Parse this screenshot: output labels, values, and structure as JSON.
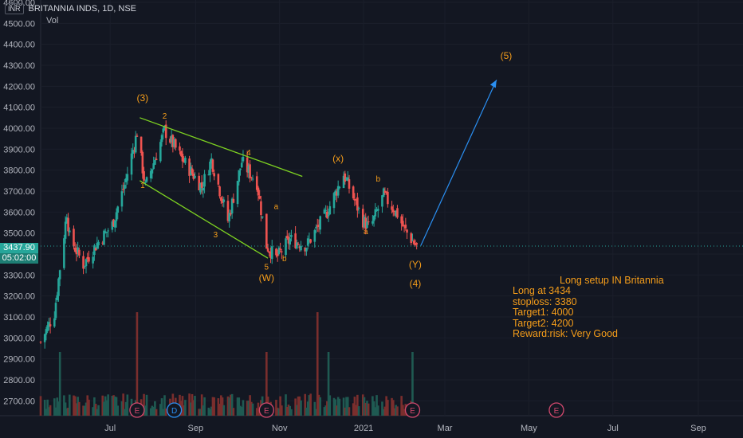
{
  "header": {
    "currency": "INR",
    "title": "BRITANNIA INDS, 1D, NSE",
    "volume_label": "Vol"
  },
  "price_axis": {
    "labels": [
      "4600.00",
      "4500.00",
      "4400.00",
      "4300.00",
      "4200.00",
      "4100.00",
      "4000.00",
      "3900.00",
      "3800.00",
      "3700.00",
      "3600.00",
      "3500.00",
      "3400.00",
      "3300.00",
      "3200.00",
      "3100.00",
      "3000.00",
      "2900.00",
      "2800.00",
      "2700.00"
    ]
  },
  "current_price": {
    "price": "3437.90",
    "countdown": "05:02:00"
  },
  "time_axis": {
    "labels": [
      "Jul",
      "Sep",
      "Nov",
      "2021",
      "Mar",
      "May",
      "Jul",
      "Sep"
    ]
  },
  "event_markers": [
    "E",
    "D",
    "E",
    "E",
    "E"
  ],
  "setup_note": {
    "heading": "Long setup IN Britannia",
    "lines": [
      "Long at 3434",
      "stoploss: 3380",
      "Target1: 4000",
      "Target2: 4200",
      "Reward:risk: Very Good"
    ]
  },
  "wave_labels": [
    "(3)",
    "2",
    "1",
    "3",
    "4",
    "5",
    "(W)",
    "a",
    "b",
    "(x)",
    "a",
    "b",
    "(Y)",
    "(4)",
    "(5)"
  ],
  "colors": {
    "background": "#131722",
    "up": "#26a69a",
    "down": "#ef5350",
    "annotation": "#f59d1a",
    "channel": "#7ed321",
    "projection": "#2a8ff2"
  },
  "chart_data": {
    "type": "candlestick",
    "symbol": "BRITANNIA INDS",
    "interval": "1D",
    "exchange": "NSE",
    "ylim": [
      2650,
      4650
    ],
    "x_range": [
      "2020-05-15",
      "2021-09-30"
    ],
    "price_path": [
      {
        "date": "2020-05-15",
        "close": 2980
      },
      {
        "date": "2020-05-25",
        "close": 3120
      },
      {
        "date": "2020-06-03",
        "close": 3600
      },
      {
        "date": "2020-06-05",
        "close": 3480
      },
      {
        "date": "2020-06-15",
        "close": 3350
      },
      {
        "date": "2020-06-25",
        "close": 3450
      },
      {
        "date": "2020-07-06",
        "close": 3540
      },
      {
        "date": "2020-07-15",
        "close": 3730
      },
      {
        "date": "2020-07-24",
        "close": 3980
      },
      {
        "date": "2020-07-30",
        "close": 3720
      },
      {
        "date": "2020-08-13",
        "close": 3990
      },
      {
        "date": "2020-08-25",
        "close": 3860
      },
      {
        "date": "2020-09-09",
        "close": 3720
      },
      {
        "date": "2020-09-16",
        "close": 3850
      },
      {
        "date": "2020-09-28",
        "close": 3560
      },
      {
        "date": "2020-10-08",
        "close": 3840
      },
      {
        "date": "2020-10-19",
        "close": 3740
      },
      {
        "date": "2020-10-26",
        "close": 3440
      },
      {
        "date": "2020-11-02",
        "close": 3380
      },
      {
        "date": "2020-11-12",
        "close": 3470
      },
      {
        "date": "2020-11-24",
        "close": 3440
      },
      {
        "date": "2020-12-09",
        "close": 3600
      },
      {
        "date": "2020-12-21",
        "close": 3780
      },
      {
        "date": "2021-01-04",
        "close": 3560
      },
      {
        "date": "2021-01-09",
        "close": 3520
      },
      {
        "date": "2021-01-19",
        "close": 3680
      },
      {
        "date": "2021-01-29",
        "close": 3590
      },
      {
        "date": "2021-02-03",
        "close": 3520
      },
      {
        "date": "2021-02-12",
        "close": 3434
      }
    ],
    "volume_spikes": [
      {
        "date": "2020-05-29",
        "volume": "high"
      },
      {
        "date": "2020-07-24",
        "volume": "highest"
      },
      {
        "date": "2020-10-26",
        "volume": "high"
      },
      {
        "date": "2020-12-02",
        "volume": "highest"
      },
      {
        "date": "2020-12-10",
        "volume": "high"
      },
      {
        "date": "2021-02-09",
        "volume": "high"
      }
    ],
    "annotations": {
      "long_entry": 3434,
      "stoploss": 3380,
      "target1": 4000,
      "target2": 4200,
      "projection_target": 4230
    }
  }
}
